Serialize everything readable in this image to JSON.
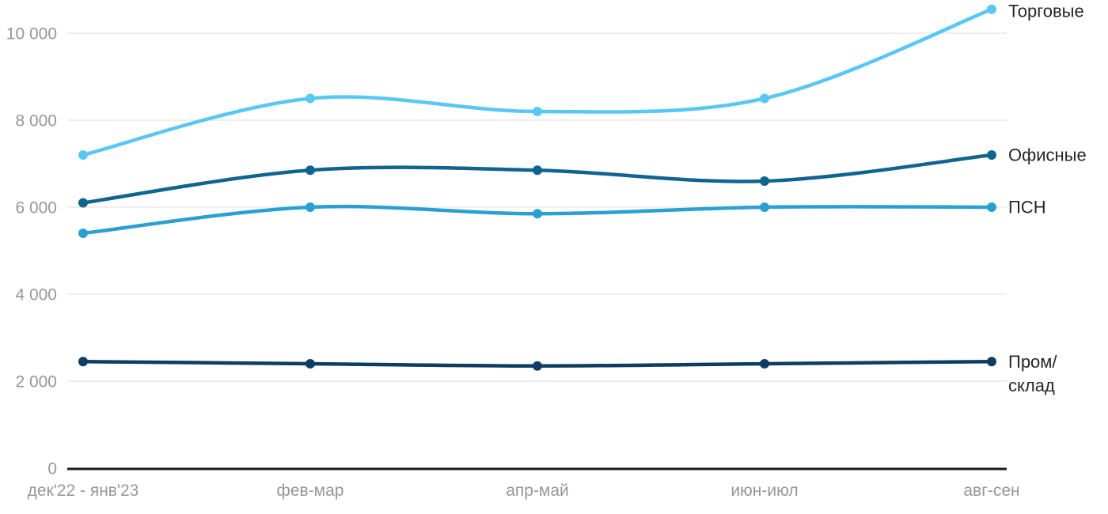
{
  "chart_data": {
    "type": "line",
    "title": "",
    "xlabel": "",
    "ylabel": "",
    "categories": [
      "дек'22 - янв'23",
      "фев-мар",
      "апр-май",
      "июн-июл",
      "авг-сен"
    ],
    "series": [
      {
        "name": "Торговые",
        "key": "retail",
        "color": "#58C7F4",
        "values": [
          7200,
          8500,
          8200,
          8500,
          10550
        ],
        "label_lines": [
          "Торговые"
        ]
      },
      {
        "name": "Офисные",
        "key": "office",
        "color": "#0F6490",
        "values": [
          6100,
          6850,
          6850,
          6600,
          7200
        ],
        "label_lines": [
          "Офисные"
        ]
      },
      {
        "name": "ПСН",
        "key": "psn",
        "color": "#2AA0D2",
        "values": [
          5400,
          6000,
          5850,
          6000,
          6000
        ],
        "label_lines": [
          "ПСН"
        ]
      },
      {
        "name": "Пром/склад",
        "key": "industrial",
        "color": "#0D3E62",
        "values": [
          2450,
          2400,
          2350,
          2400,
          2450
        ],
        "label_lines": [
          "Пром/",
          "склад"
        ]
      }
    ],
    "y_ticks": [
      0,
      2000,
      4000,
      6000,
      8000,
      10000
    ],
    "y_tick_labels": [
      "0",
      "2 000",
      "4 000",
      "6 000",
      "8 000",
      "10 000"
    ],
    "ylim": [
      0,
      10750
    ],
    "grid": "horizontal",
    "legend_position": "right-of-line-ends",
    "curve": "smooth"
  },
  "styles": {
    "background": "#ffffff",
    "grid_color": "#e9e9e9",
    "axis_line_color": "#1a1a1a",
    "tick_label_color": "#979797",
    "legend_text_color": "#262626"
  }
}
